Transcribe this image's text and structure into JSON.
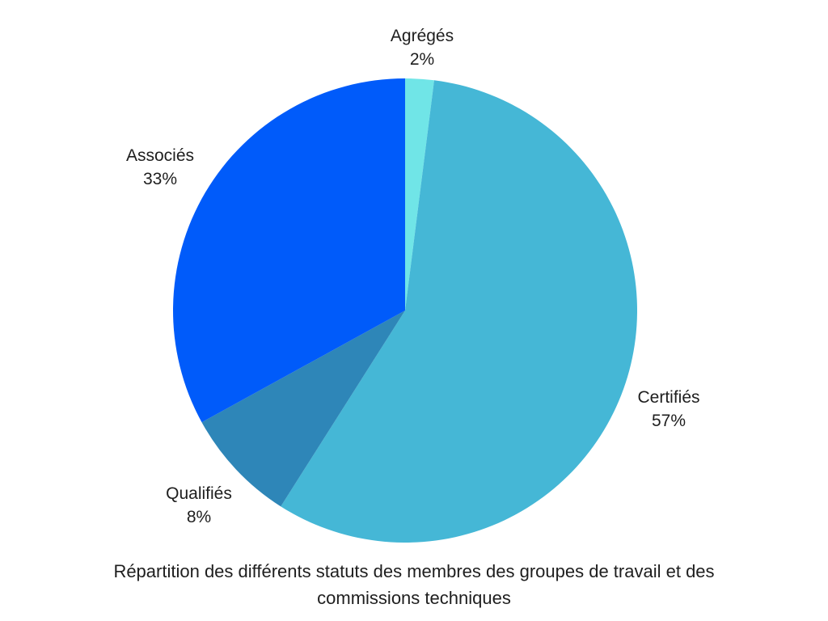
{
  "page": {
    "background_color": "#ffffff",
    "text_color": "#1e1e1e"
  },
  "chart_data": {
    "type": "pie",
    "title": "Répartition des différents statuts des membres des groupes de travail et des commissions techniques",
    "title_position": "bottom",
    "legend": "none",
    "labels_position": "outside",
    "start_angle_deg": 0,
    "direction": "clockwise",
    "slices": [
      {
        "label": "Agrégés",
        "value": 2,
        "pct_label": "2%",
        "color": "#70E5E7"
      },
      {
        "label": "Certifiés",
        "value": 57,
        "pct_label": "57%",
        "color": "#45B7D6"
      },
      {
        "label": "Qualifiés",
        "value": 8,
        "pct_label": "8%",
        "color": "#2E86B8"
      },
      {
        "label": "Associés",
        "value": 33,
        "pct_label": "33%",
        "color": "#005BFA"
      }
    ]
  }
}
